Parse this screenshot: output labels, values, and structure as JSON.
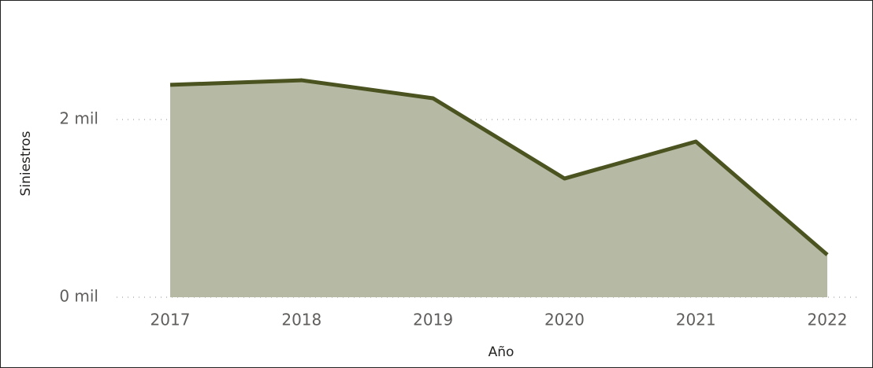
{
  "chart_data": {
    "type": "area",
    "x_label": "Año",
    "y_label": "Siniestros",
    "categories": [
      "2017",
      "2018",
      "2019",
      "2020",
      "2021",
      "2022"
    ],
    "values": [
      2390,
      2442,
      2239,
      1336,
      1752,
      478
    ],
    "color": "#4b5320",
    "fill_color": "#b6baa4",
    "ylim": [
      0,
      2800
    ],
    "yticks": [
      {
        "value": 0,
        "label": "0 mil"
      },
      {
        "value": 2000,
        "label": "2 mil"
      }
    ],
    "grid": true
  }
}
